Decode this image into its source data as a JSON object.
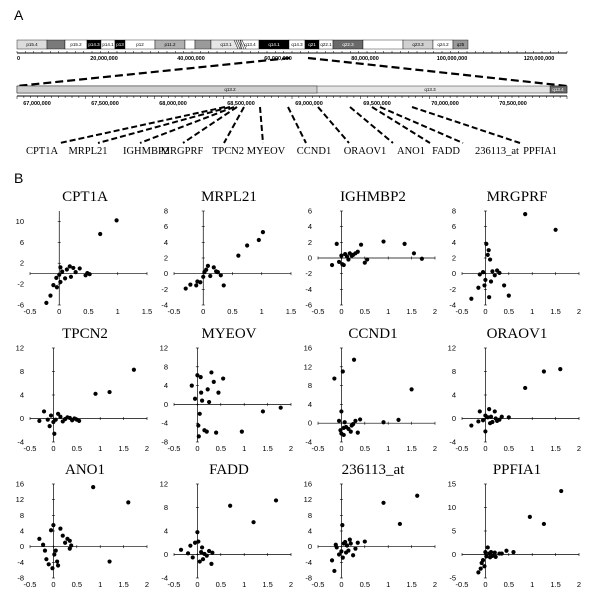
{
  "panel_labels": {
    "a": "A",
    "b": "B"
  },
  "chromosome": {
    "bands": [
      {
        "name": "p15.4",
        "shade": "#dcdcdc"
      },
      {
        "name": "",
        "shade": "#7a7a7a"
      },
      {
        "name": "p15.2",
        "shade": "#ffffff"
      },
      {
        "name": "p14.3",
        "shade": "#000000"
      },
      {
        "name": "p14.1",
        "shade": "#ffffff"
      },
      {
        "name": "p13",
        "shade": "#000000"
      },
      {
        "name": "p12",
        "shade": "#ffffff"
      },
      {
        "name": "p11.2",
        "shade": "#b0b0b0"
      },
      {
        "name": "",
        "shade": "#ffffff"
      },
      {
        "name": "",
        "shade": "#9a9a9a"
      },
      {
        "name": "q13.1",
        "shade": "#e6e6e6"
      },
      {
        "name": "q13.4",
        "shade": "#ffffff"
      },
      {
        "name": "q14.1",
        "shade": "#000000"
      },
      {
        "name": "q14.3",
        "shade": "#ffffff"
      },
      {
        "name": "q21",
        "shade": "#000000"
      },
      {
        "name": "q22.1",
        "shade": "#ffffff"
      },
      {
        "name": "q22.3",
        "shade": "#6a6a6a"
      },
      {
        "name": "",
        "shade": "#ffffff"
      },
      {
        "name": "q23.3",
        "shade": "#d0d0d0"
      },
      {
        "name": "q24.2",
        "shade": "#ffffff"
      },
      {
        "name": "q25",
        "shade": "#9a9a9a"
      }
    ],
    "scale_labels": [
      "0",
      "20,000,000",
      "40,000,000",
      "60,000,000",
      "80,000,000",
      "100,000,000",
      "120,000,000"
    ],
    "zoom_scale_labels": [
      "67,000,000",
      "67,500,000",
      "68,000,000",
      "68,500,000",
      "69,000,000",
      "69,500,000",
      "70,000,000",
      "70,500,000"
    ],
    "zoom_bands": [
      "q13.2",
      "q13.3",
      "q13.4"
    ]
  },
  "genes": [
    "CPT1A",
    "MRPL21",
    "IGHMBP2",
    "MRGPRF",
    "TPCN2",
    "MYEOV",
    "CCND1",
    "ORAOV1",
    "ANO1",
    "FADD",
    "236113_at",
    "PPFIA1"
  ],
  "chart_data": [
    {
      "type": "scatter",
      "title": "CPT1A",
      "xlim": [
        -0.5,
        1.5
      ],
      "ylim": [
        -6,
        12
      ],
      "xticks": [
        "-0.5",
        "0",
        "0.5",
        "1",
        "1.5"
      ],
      "yticks": [
        "-6",
        "-2",
        "2",
        "6",
        "10"
      ],
      "points": [
        [
          -0.22,
          -5.6
        ],
        [
          -0.15,
          -4.2
        ],
        [
          -0.1,
          -2.2
        ],
        [
          -0.05,
          -0.8
        ],
        [
          -0.04,
          -2.6
        ],
        [
          0,
          -0.2
        ],
        [
          0.02,
          1.2
        ],
        [
          0.05,
          0.4
        ],
        [
          0.1,
          -0.9
        ],
        [
          0.13,
          0.8
        ],
        [
          0.18,
          1.4
        ],
        [
          0.2,
          -0.6
        ],
        [
          0.24,
          1.1
        ],
        [
          0.28,
          0.3
        ],
        [
          0.35,
          1.0
        ],
        [
          0.45,
          -0.3
        ],
        [
          0.48,
          0.1
        ],
        [
          0.52,
          -0.1
        ],
        [
          0.7,
          7.6
        ],
        [
          0.98,
          10.2
        ],
        [
          0.02,
          -1.6
        ]
      ]
    },
    {
      "type": "scatter",
      "title": "MRPL21",
      "xlim": [
        -0.5,
        1.5
      ],
      "ylim": [
        -4,
        8
      ],
      "xticks": [
        "-0.5",
        "0",
        "0.5",
        "1",
        "1.5"
      ],
      "yticks": [
        "-4",
        "-2",
        "0",
        "2",
        "4",
        "6",
        "8"
      ],
      "points": [
        [
          -0.3,
          -1.9
        ],
        [
          -0.22,
          -1.4
        ],
        [
          -0.12,
          -1.5
        ],
        [
          -0.1,
          -1.0
        ],
        [
          -0.05,
          -1.1
        ],
        [
          0,
          -0.4
        ],
        [
          0.02,
          0.2
        ],
        [
          0.05,
          0.5
        ],
        [
          0.08,
          1.0
        ],
        [
          0.12,
          -0.3
        ],
        [
          0.18,
          0.8
        ],
        [
          0.22,
          0.3
        ],
        [
          0.25,
          0.2
        ],
        [
          0.3,
          -0.2
        ],
        [
          0.35,
          -1.5
        ],
        [
          0.6,
          2.3
        ],
        [
          0.75,
          3.6
        ],
        [
          0.95,
          4.3
        ],
        [
          1.02,
          5.3
        ]
      ]
    },
    {
      "type": "scatter",
      "title": "IGHMBP2",
      "xlim": [
        -0.5,
        2
      ],
      "ylim": [
        -6,
        6
      ],
      "xticks": [
        "-0.5",
        "0",
        "0.5",
        "1",
        "1.5",
        "2"
      ],
      "yticks": [
        "-6",
        "-4",
        "-2",
        "0",
        "2",
        "4",
        "6"
      ],
      "points": [
        [
          -0.2,
          -0.9
        ],
        [
          -0.1,
          1.8
        ],
        [
          -0.05,
          -0.5
        ],
        [
          0,
          0.3
        ],
        [
          0.02,
          -0.8
        ],
        [
          0.05,
          -0.9
        ],
        [
          0.08,
          0.5
        ],
        [
          0.12,
          0.2
        ],
        [
          0.15,
          -0.2
        ],
        [
          0.18,
          0.6
        ],
        [
          0.22,
          0.3
        ],
        [
          0.25,
          0.4
        ],
        [
          0.3,
          0.6
        ],
        [
          0.35,
          0.8
        ],
        [
          0.42,
          1.7
        ],
        [
          0.5,
          -0.6
        ],
        [
          0.55,
          -0.2
        ],
        [
          0.9,
          2.1
        ],
        [
          1.35,
          1.8
        ],
        [
          1.55,
          0.6
        ],
        [
          1.72,
          -0.1
        ]
      ]
    },
    {
      "type": "scatter",
      "title": "MRGPRF",
      "xlim": [
        -0.5,
        2
      ],
      "ylim": [
        -4,
        8
      ],
      "xticks": [
        "-0.5",
        "0",
        "0.5",
        "1",
        "1.5",
        "2"
      ],
      "yticks": [
        "-4",
        "-2",
        "0",
        "2",
        "4",
        "6",
        "8"
      ],
      "points": [
        [
          -0.3,
          -3.2
        ],
        [
          -0.15,
          -1.8
        ],
        [
          -0.12,
          -0.1
        ],
        [
          -0.05,
          0.2
        ],
        [
          -0.02,
          -1.5
        ],
        [
          0,
          -0.8
        ],
        [
          0.02,
          3.8
        ],
        [
          0.05,
          2.4
        ],
        [
          0.07,
          3.0
        ],
        [
          0.1,
          1.8
        ],
        [
          0.12,
          -1.0
        ],
        [
          0.15,
          0.3
        ],
        [
          0.2,
          -0.2
        ],
        [
          0.25,
          0.4
        ],
        [
          0.3,
          0.1
        ],
        [
          0.4,
          -1.5
        ],
        [
          0.5,
          -2.8
        ],
        [
          0.85,
          7.6
        ],
        [
          1.5,
          5.6
        ],
        [
          0.08,
          -3.0
        ]
      ]
    },
    {
      "type": "scatter",
      "title": "TPCN2",
      "xlim": [
        -0.5,
        2
      ],
      "ylim": [
        -4,
        12
      ],
      "xticks": [
        "-0.5",
        "0",
        "0.5",
        "1",
        "1.5",
        "2"
      ],
      "yticks": [
        "-4",
        "0",
        "4",
        "8",
        "12"
      ],
      "points": [
        [
          -0.3,
          -0.4
        ],
        [
          -0.2,
          1.2
        ],
        [
          -0.12,
          -0.2
        ],
        [
          -0.08,
          -1.3
        ],
        [
          -0.05,
          0.5
        ],
        [
          0,
          -0.6
        ],
        [
          0.05,
          -0.2
        ],
        [
          0.1,
          0.8
        ],
        [
          0.15,
          0.3
        ],
        [
          0.2,
          -0.5
        ],
        [
          0.25,
          -0.1
        ],
        [
          0.3,
          0.2
        ],
        [
          0.35,
          0.1
        ],
        [
          0.4,
          -0.3
        ],
        [
          0.45,
          0.0
        ],
        [
          0.5,
          -0.2
        ],
        [
          0.55,
          -0.4
        ],
        [
          0.9,
          4.2
        ],
        [
          1.2,
          4.5
        ],
        [
          1.72,
          8.3
        ],
        [
          0.02,
          -2.6
        ]
      ]
    },
    {
      "type": "scatter",
      "title": "MYEOV",
      "xlim": [
        -0.5,
        2
      ],
      "ylim": [
        -8,
        12
      ],
      "xticks": [
        "-0.5",
        "0",
        "0.5",
        "1",
        "1.5",
        "2"
      ],
      "yticks": [
        "-8",
        "-4",
        "0",
        "4",
        "8",
        "12"
      ],
      "points": [
        [
          -0.12,
          4.0
        ],
        [
          -0.05,
          1.2
        ],
        [
          0,
          6.2
        ],
        [
          0.02,
          -4.5
        ],
        [
          0.03,
          -6.8
        ],
        [
          0.05,
          -2.0
        ],
        [
          0.07,
          5.8
        ],
        [
          0.08,
          2.5
        ],
        [
          0.1,
          0.8
        ],
        [
          0.15,
          -5.5
        ],
        [
          0.2,
          -5.8
        ],
        [
          0.22,
          3.2
        ],
        [
          0.25,
          0.5
        ],
        [
          0.3,
          6.8
        ],
        [
          0.35,
          4.8
        ],
        [
          0.4,
          -6.0
        ],
        [
          0.45,
          2.5
        ],
        [
          0.55,
          5.5
        ],
        [
          0.95,
          -5.8
        ],
        [
          1.4,
          -1.5
        ],
        [
          1.78,
          -0.7
        ]
      ]
    },
    {
      "type": "scatter",
      "title": "CCND1",
      "xlim": [
        -0.5,
        2
      ],
      "ylim": [
        -4,
        16
      ],
      "xticks": [
        "-0.5",
        "0",
        "0.5",
        "1",
        "1.5",
        "2"
      ],
      "yticks": [
        "-4",
        "0",
        "4",
        "8",
        "12",
        "16"
      ],
      "points": [
        [
          -0.15,
          9.5
        ],
        [
          -0.05,
          0.5
        ],
        [
          -0.02,
          -1.5
        ],
        [
          0,
          -2.2
        ],
        [
          0,
          2.5
        ],
        [
          0.03,
          11.0
        ],
        [
          0.05,
          -1.0
        ],
        [
          0.05,
          -2.5
        ],
        [
          0.07,
          0.2
        ],
        [
          0.1,
          -0.8
        ],
        [
          0.15,
          -1.2
        ],
        [
          0.2,
          -1.8
        ],
        [
          0.22,
          -0.5
        ],
        [
          0.25,
          -0.2
        ],
        [
          0.27,
          13.5
        ],
        [
          0.3,
          0.5
        ],
        [
          0.35,
          -2.0
        ],
        [
          0.4,
          0.8
        ],
        [
          0.9,
          0.2
        ],
        [
          1.22,
          0.7
        ],
        [
          1.5,
          7.2
        ]
      ]
    },
    {
      "type": "scatter",
      "title": "ORAOV1",
      "xlim": [
        -0.5,
        2
      ],
      "ylim": [
        -4,
        12
      ],
      "xticks": [
        "-0.5",
        "0",
        "0.5",
        "1",
        "1.5",
        "2"
      ],
      "yticks": [
        "-4",
        "0",
        "4",
        "8",
        "12"
      ],
      "points": [
        [
          -0.3,
          -1.2
        ],
        [
          -0.15,
          -0.5
        ],
        [
          -0.12,
          1.2
        ],
        [
          -0.05,
          -0.3
        ],
        [
          0,
          0.5
        ],
        [
          0,
          -2.2
        ],
        [
          0.05,
          0.2
        ],
        [
          0.08,
          1.6
        ],
        [
          0.1,
          -0.8
        ],
        [
          0.12,
          0.3
        ],
        [
          0.15,
          -0.6
        ],
        [
          0.2,
          1.2
        ],
        [
          0.22,
          0.0
        ],
        [
          0.25,
          -0.4
        ],
        [
          0.3,
          -0.2
        ],
        [
          0.35,
          0.3
        ],
        [
          0.5,
          0.2
        ],
        [
          0.85,
          5.2
        ],
        [
          1.25,
          8.0
        ],
        [
          1.6,
          8.4
        ]
      ]
    },
    {
      "type": "scatter",
      "title": "ANO1",
      "xlim": [
        -0.5,
        2
      ],
      "ylim": [
        -8,
        16
      ],
      "xticks": [
        "-0.5",
        "0",
        "0.5",
        "1",
        "1.5",
        "2"
      ],
      "yticks": [
        "-8",
        "-4",
        "0",
        "4",
        "8",
        "12",
        "16"
      ],
      "points": [
        [
          -0.3,
          2.0
        ],
        [
          -0.22,
          0.5
        ],
        [
          -0.18,
          -1.0
        ],
        [
          -0.15,
          -3.2
        ],
        [
          -0.1,
          -4.5
        ],
        [
          -0.05,
          4.2
        ],
        [
          -0.02,
          -5.5
        ],
        [
          0,
          5.5
        ],
        [
          0.02,
          -2.0
        ],
        [
          0.05,
          -1.0
        ],
        [
          0.08,
          -3.8
        ],
        [
          0.1,
          -4.8
        ],
        [
          0.15,
          4.6
        ],
        [
          0.2,
          2.8
        ],
        [
          0.25,
          1.0
        ],
        [
          0.3,
          2.0
        ],
        [
          0.35,
          1.5
        ],
        [
          0.35,
          -0.5
        ],
        [
          0.38,
          0.3
        ],
        [
          0.85,
          15.2
        ],
        [
          1.2,
          -3.8
        ],
        [
          1.6,
          11.3
        ]
      ]
    },
    {
      "type": "scatter",
      "title": "FADD",
      "xlim": [
        -0.5,
        2
      ],
      "ylim": [
        -4,
        12
      ],
      "xticks": [
        "-0.5",
        "0",
        "0.5",
        "1",
        "1.5",
        "2"
      ],
      "yticks": [
        "-4",
        "0",
        "4",
        "8",
        "12"
      ],
      "points": [
        [
          -0.35,
          0.8
        ],
        [
          -0.2,
          0.2
        ],
        [
          -0.15,
          1.5
        ],
        [
          -0.1,
          -0.5
        ],
        [
          -0.05,
          2.0
        ],
        [
          0,
          3.8
        ],
        [
          0.02,
          2.2
        ],
        [
          0.05,
          -1.2
        ],
        [
          0.08,
          0.4
        ],
        [
          0.1,
          1.2
        ],
        [
          0.12,
          -0.8
        ],
        [
          0.15,
          0.1
        ],
        [
          0.2,
          -0.2
        ],
        [
          0.25,
          0.6
        ],
        [
          0.3,
          -1.6
        ],
        [
          0.32,
          0.3
        ],
        [
          0.7,
          8.3
        ],
        [
          1.2,
          5.5
        ],
        [
          1.68,
          9.2
        ]
      ]
    },
    {
      "type": "scatter",
      "title": "236113_at",
      "xlim": [
        -0.5,
        2
      ],
      "ylim": [
        -8,
        16
      ],
      "xticks": [
        "-0.5",
        "0",
        "0.5",
        "1",
        "1.5",
        "2"
      ],
      "yticks": [
        "-8",
        "-4",
        "0",
        "4",
        "8",
        "12",
        "16"
      ],
      "points": [
        [
          -0.2,
          -3.5
        ],
        [
          -0.15,
          -6.2
        ],
        [
          -0.12,
          0.5
        ],
        [
          -0.1,
          -0.2
        ],
        [
          -0.05,
          -2.0
        ],
        [
          0,
          -1.2
        ],
        [
          0.02,
          5.5
        ],
        [
          0.03,
          -2.8
        ],
        [
          0.05,
          0.8
        ],
        [
          0.08,
          1.2
        ],
        [
          0.1,
          -1.5
        ],
        [
          0.12,
          0.3
        ],
        [
          0.15,
          -1.0
        ],
        [
          0.18,
          1.8
        ],
        [
          0.2,
          0.8
        ],
        [
          0.25,
          -2.2
        ],
        [
          0.3,
          -0.5
        ],
        [
          0.35,
          1.0
        ],
        [
          0.5,
          1.3
        ],
        [
          0.9,
          11.2
        ],
        [
          1.25,
          5.8
        ],
        [
          1.62,
          13.0
        ]
      ]
    },
    {
      "type": "scatter",
      "title": "PPFIA1",
      "xlim": [
        -0.5,
        2
      ],
      "ylim": [
        -5,
        15
      ],
      "xticks": [
        "-0.5",
        "0",
        "0.5",
        "1",
        "1.5",
        "2"
      ],
      "yticks": [
        "-5",
        "0",
        "5",
        "10",
        "15"
      ],
      "points": [
        [
          -0.15,
          -3.8
        ],
        [
          -0.1,
          -3.0
        ],
        [
          -0.08,
          -1.8
        ],
        [
          -0.05,
          -1.2
        ],
        [
          -0.02,
          -2.5
        ],
        [
          0,
          0.5
        ],
        [
          0.02,
          -0.4
        ],
        [
          0.05,
          1.5
        ],
        [
          0.08,
          0.2
        ],
        [
          0.1,
          -0.6
        ],
        [
          0.12,
          0.5
        ],
        [
          0.15,
          -0.3
        ],
        [
          0.2,
          0.4
        ],
        [
          0.22,
          -0.5
        ],
        [
          0.3,
          0.2
        ],
        [
          0.35,
          0.2
        ],
        [
          0.45,
          0.8
        ],
        [
          0.6,
          0.5
        ],
        [
          0.95,
          8.0
        ],
        [
          1.25,
          6.5
        ],
        [
          1.62,
          13.5
        ]
      ]
    }
  ]
}
